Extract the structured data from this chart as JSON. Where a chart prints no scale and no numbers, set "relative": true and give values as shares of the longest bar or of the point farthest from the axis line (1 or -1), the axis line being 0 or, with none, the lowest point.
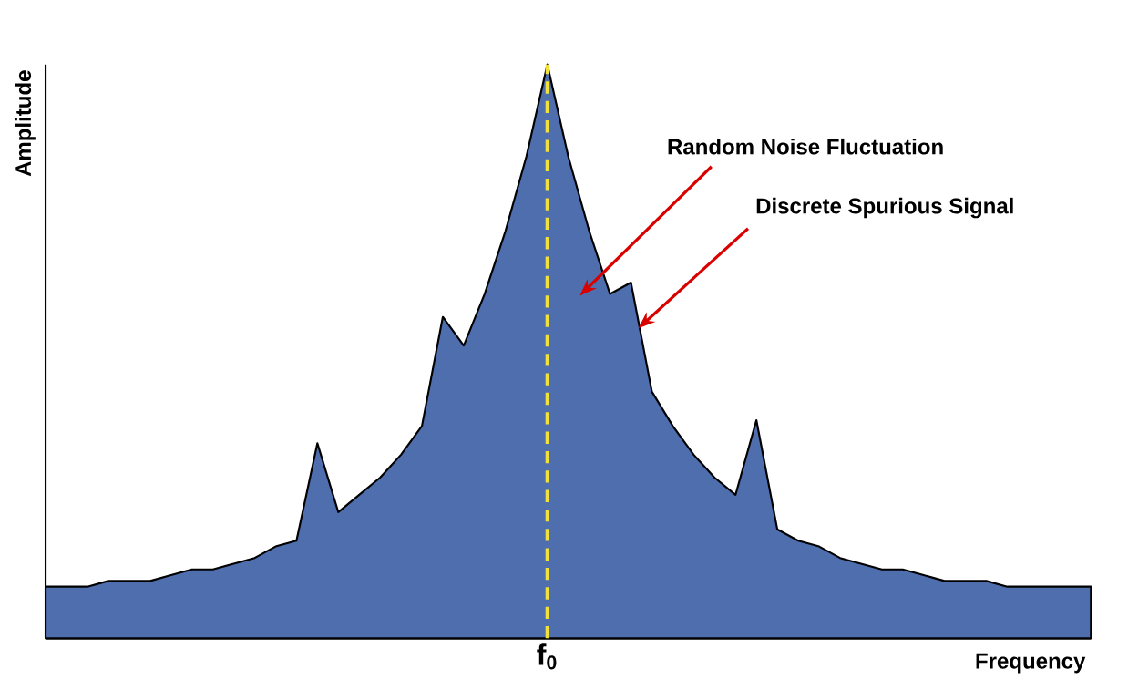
{
  "chart_data": {
    "type": "area",
    "relative": true,
    "xlabel": "Frequency",
    "ylabel": "Amplitude",
    "categories": [
      null,
      null,
      null,
      null,
      null,
      null,
      null,
      null,
      null,
      null,
      null,
      null,
      null,
      null,
      null,
      null,
      null,
      null,
      null,
      null,
      null,
      null,
      null,
      null,
      null,
      null,
      null,
      null,
      null,
      null,
      null,
      null,
      null,
      null,
      null,
      null,
      null,
      null,
      null,
      null,
      null,
      null,
      null,
      null,
      null,
      null,
      null,
      null,
      null,
      null,
      null
    ],
    "color": "#4f6eae",
    "values": [
      0.09,
      0.09,
      0.09,
      0.1,
      0.1,
      0.1,
      0.11,
      0.12,
      0.12,
      0.13,
      0.14,
      0.16,
      0.17,
      0.34,
      0.22,
      0.25,
      0.28,
      0.32,
      0.37,
      0.56,
      0.51,
      0.6,
      0.71,
      0.84,
      1.0,
      0.84,
      0.71,
      0.6,
      0.62,
      0.43,
      0.37,
      0.32,
      0.28,
      0.25,
      0.38,
      0.19,
      0.17,
      0.16,
      0.14,
      0.13,
      0.12,
      0.12,
      0.11,
      0.1,
      0.1,
      0.1,
      0.09,
      0.09,
      0.09,
      0.09,
      0.09
    ],
    "annotations": [
      "Random Noise Fluctuation",
      "Discrete Spurious Signal",
      "f$_{0}$"
    ]
  }
}
